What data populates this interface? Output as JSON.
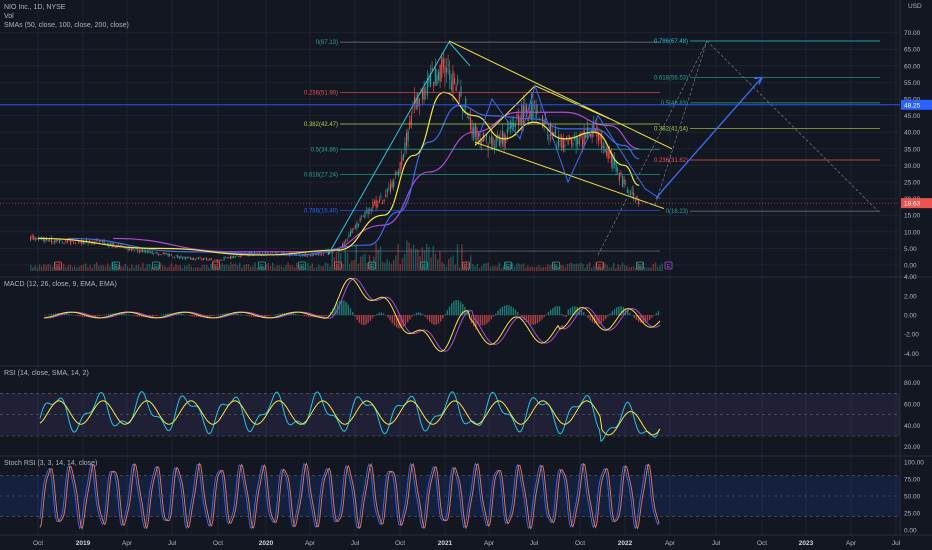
{
  "header": {
    "symbol_line": "NIO Inc., 1D, NYSE",
    "vol_label": "Vol",
    "sma_label": "SMAs (50, close, 100, close, 200, close)",
    "currency": "USD"
  },
  "indicators": {
    "macd_label": "MACD (12, 26, close, 9, EMA, EMA)",
    "rsi_label": "RSI (14, close, SMA, 14, 2)",
    "stoch_label": "Stoch RSI (3, 3, 14, 14, close)"
  },
  "colors": {
    "background": "#131722",
    "grid": "#1f2330",
    "candle_up": "#26a69a",
    "candle_down": "#ef5350",
    "sma50": "#f5e642",
    "sma100": "#3f6be6",
    "sma200": "#b14ad6",
    "trendline": "#f5e642",
    "fib_left": "#26c6da",
    "projection": "#3f6be6",
    "rsi": "#26c6da",
    "rsi_ma": "#f5e642",
    "macd": "#f5e642",
    "macd_signal": "#b14ad6",
    "stoch_k": "#3f6be6",
    "stoch_d": "#ef7a5a",
    "price_badge": "#ef5350",
    "level_badge": "#2962ff"
  },
  "chart_data": [
    {
      "type": "candlestick",
      "title": "NIO Inc., 1D, NYSE",
      "x_ticks": [
        "Oct",
        "2019",
        "Apr",
        "Jul",
        "Oct",
        "2020",
        "Apr",
        "Jul",
        "Oct",
        "2021",
        "Apr",
        "Jul",
        "Oct",
        "2022",
        "Apr",
        "Jul",
        "Oct",
        "2023",
        "Apr",
        "Jul"
      ],
      "y_ticks": [
        "70.00",
        "65.00",
        "60.00",
        "55.00",
        "50.00",
        "45.00",
        "40.00",
        "35.00",
        "30.00",
        "25.00",
        "20.00",
        "15.00",
        "10.00",
        "5.00",
        "0.00"
      ],
      "ylim": [
        -5,
        72
      ],
      "price_series": {
        "x": [
          "2018-10",
          "2018-12",
          "2019-02",
          "2019-04",
          "2019-06",
          "2019-08",
          "2019-10",
          "2019-12",
          "2020-02",
          "2020-04",
          "2020-06",
          "2020-07",
          "2020-08",
          "2020-09",
          "2020-10",
          "2020-11",
          "2020-12",
          "2021-01",
          "2021-02",
          "2021-03",
          "2021-04",
          "2021-05",
          "2021-06",
          "2021-07",
          "2021-08",
          "2021-09",
          "2021-10",
          "2021-11",
          "2021-12",
          "2022-01",
          "2022-02"
        ],
        "values": [
          8,
          7,
          7,
          5,
          3.5,
          2,
          1.5,
          3.5,
          3.5,
          3,
          4.5,
          11,
          17,
          20,
          28,
          48,
          55,
          60,
          52,
          40,
          37,
          38,
          45,
          47,
          40,
          36,
          37,
          41,
          33,
          24,
          19
        ]
      },
      "sma50": {
        "x": [
          "2018-10",
          "2019-06",
          "2020-01",
          "2020-06",
          "2020-09",
          "2020-11",
          "2021-01",
          "2021-03",
          "2021-05",
          "2021-07",
          "2021-09",
          "2021-11",
          "2022-01",
          "2022-02"
        ],
        "values": [
          8,
          5,
          3,
          4.5,
          15,
          33,
          52,
          45,
          38,
          43,
          38,
          40,
          30,
          24
        ]
      },
      "sma100": {
        "x": [
          "2018-12",
          "2019-08",
          "2020-03",
          "2020-08",
          "2020-10",
          "2020-12",
          "2021-02",
          "2021-04",
          "2021-07",
          "2021-09",
          "2021-11",
          "2022-01",
          "2022-02"
        ],
        "values": [
          8,
          4,
          3,
          6,
          16,
          37,
          48,
          45,
          44,
          41,
          41,
          36,
          32
        ]
      },
      "sma200": {
        "x": [
          "2019-03",
          "2019-11",
          "2020-05",
          "2020-09",
          "2020-12",
          "2021-03",
          "2021-06",
          "2021-09",
          "2021-12",
          "2022-02"
        ],
        "values": [
          8,
          4,
          4,
          12,
          28,
          40,
          46,
          46,
          42,
          35
        ]
      },
      "current_price_label": "18.63",
      "marked_level_label": "48.25",
      "fibonacci_left": [
        {
          "label": "0(67.13)",
          "value": 67.13
        },
        {
          "label": "0.236(51.90)",
          "value": 51.9
        },
        {
          "label": "0.382(42.47)",
          "value": 42.47
        },
        {
          "label": "0.5(34.86)",
          "value": 34.86
        },
        {
          "label": "0.618(27.24)",
          "value": 27.24
        },
        {
          "label": "0.786(16.40)",
          "value": 16.4
        }
      ],
      "fibonacci_right": [
        {
          "label": "0.786(67.48)",
          "value": 67.48
        },
        {
          "label": "0.618(56.53)",
          "value": 56.53
        },
        {
          "label": "0.5(48.83)",
          "value": 48.83
        },
        {
          "label": "0.382(41.14)",
          "value": 41.14
        },
        {
          "label": "0.236(31.62)",
          "value": 31.62
        },
        {
          "label": "0(16.23)",
          "value": 16.23
        }
      ],
      "earnings_markers": [
        "E",
        "E",
        "E",
        "E",
        "E",
        "E",
        "E",
        "E",
        "E",
        "E",
        "E",
        "E",
        "E",
        "E"
      ]
    },
    {
      "type": "line",
      "title": "MACD (12, 26, close, 9, EMA, EMA)",
      "y_ticks": [
        "4.00",
        "2.00",
        "0.00",
        "-2.00",
        "-4.00"
      ],
      "ylim": [
        -4.5,
        4.5
      ]
    },
    {
      "type": "line",
      "title": "RSI (14, close, SMA, 14, 2)",
      "y_ticks": [
        "80.00",
        "60.00",
        "40.00",
        "20.00"
      ],
      "ylim": [
        15,
        90
      ],
      "bands": [
        70,
        30
      ]
    },
    {
      "type": "line",
      "title": "Stoch RSI (3, 3, 14, 14, close)",
      "y_ticks": [
        "100.00",
        "75.00",
        "50.00",
        "25.00",
        "0.00"
      ],
      "ylim": [
        0,
        100
      ],
      "bands": [
        80,
        20
      ]
    }
  ]
}
